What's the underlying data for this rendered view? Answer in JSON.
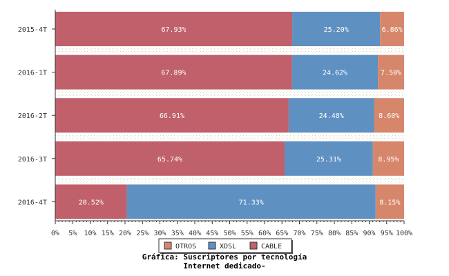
{
  "chart_data": {
    "type": "bar",
    "orientation": "horizontal",
    "stacked": true,
    "categories": [
      "2015-4T",
      "2016-1T",
      "2016-2T",
      "2016-3T",
      "2016-4T"
    ],
    "series": [
      {
        "name": "CABLE",
        "color": "#c0606a",
        "values": [
          67.93,
          67.89,
          66.91,
          65.74,
          20.52
        ]
      },
      {
        "name": "XDSL",
        "color": "#5f90c2",
        "values": [
          25.2,
          24.62,
          24.48,
          25.31,
          71.33
        ]
      },
      {
        "name": "OTROS",
        "color": "#d6876b",
        "values": [
          6.86,
          7.5,
          8.6,
          8.95,
          8.15
        ]
      }
    ],
    "data_labels": [
      [
        "67.93%",
        "25.20%",
        "6.86%"
      ],
      [
        "67.89%",
        "24.62%",
        "7.50%"
      ],
      [
        "66.91%",
        "24.48%",
        "8.60%"
      ],
      [
        "65.74%",
        "25.31%",
        "8.95%"
      ],
      [
        "20.52%",
        "71.33%",
        "8.15%"
      ]
    ],
    "xlim": [
      0,
      100
    ],
    "xticks": [
      "0%",
      "5%",
      "10%",
      "15%",
      "20%",
      "25%",
      "30%",
      "35%",
      "40%",
      "45%",
      "50%",
      "55%",
      "60%",
      "65%",
      "70%",
      "75%",
      "80%",
      "85%",
      "90%",
      "95%",
      "100%"
    ],
    "legend": {
      "placement": "bottom",
      "order": [
        "OTROS",
        "XDSL",
        "CABLE"
      ]
    },
    "grid": true
  },
  "title_line1": "Gráfica: Suscriptores por tecnología",
  "title_line2": "Internet dedicado-"
}
